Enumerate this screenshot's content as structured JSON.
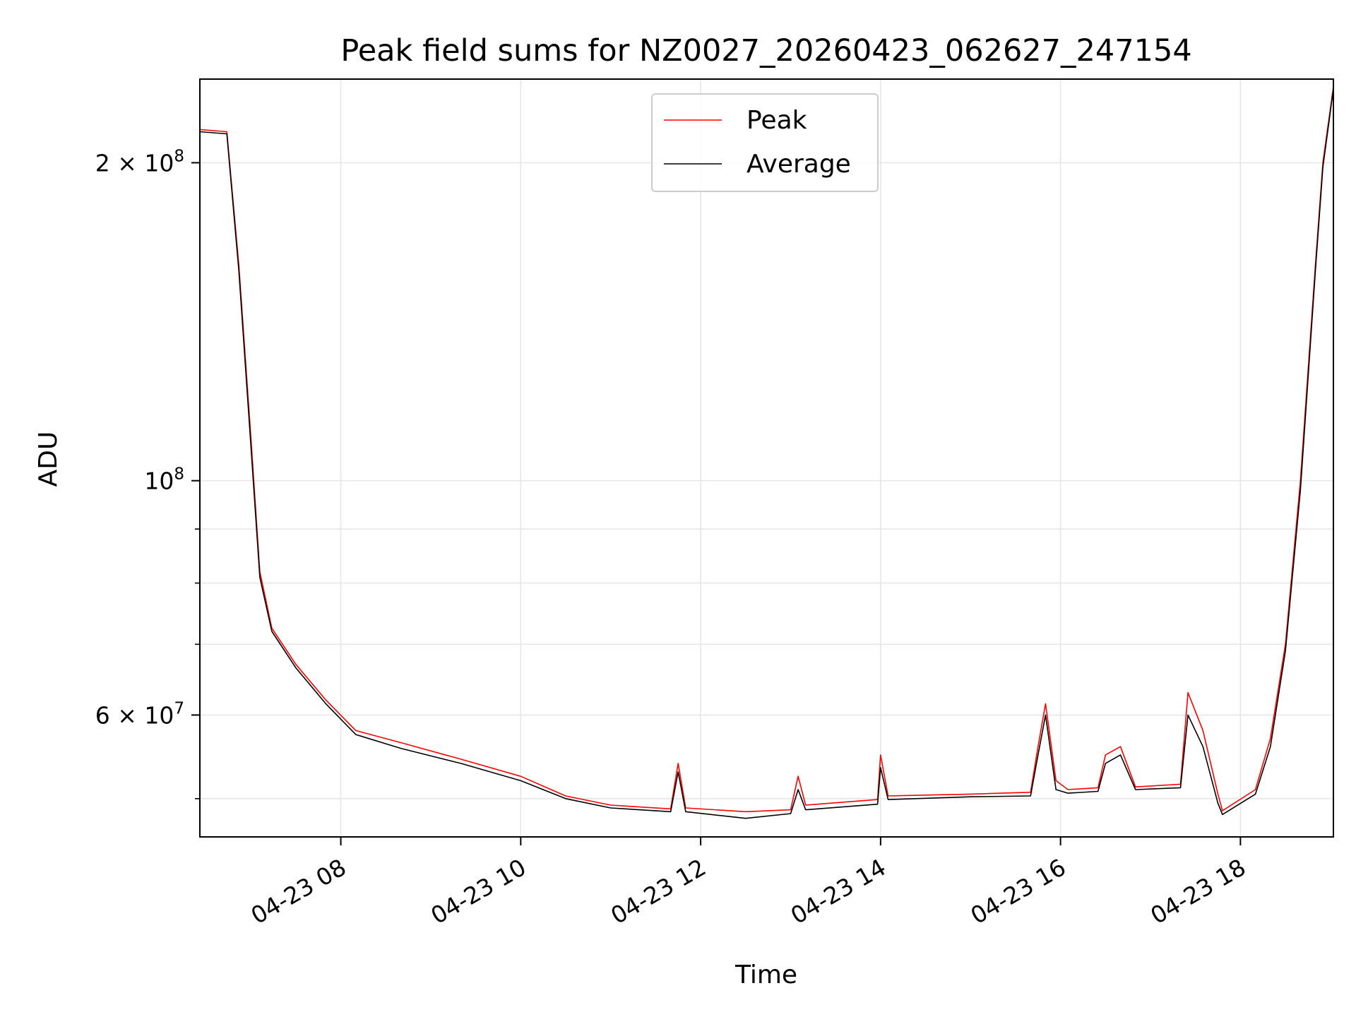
{
  "chart_data": {
    "type": "line",
    "title": "Peak field sums for NZ0027_20260423_062627_247154",
    "xlabel": "Time",
    "ylabel": "ADU",
    "yscale": "log",
    "xlim": [
      "04-23 06:26",
      "04-23 19:02"
    ],
    "ylim": [
      46000000,
      240000000
    ],
    "grid": true,
    "legend_position": "upper center",
    "x_tick_labels": [
      "04-23 08",
      "04-23 10",
      "04-23 12",
      "04-23 14",
      "04-23 16",
      "04-23 18"
    ],
    "x_ticks": [
      "04-23 08:00",
      "04-23 10:00",
      "04-23 12:00",
      "04-23 14:00",
      "04-23 16:00",
      "04-23 18:00"
    ],
    "y_tick_labels": [
      {
        "value": 200000000,
        "mantissa": "2",
        "exp": "8"
      },
      {
        "value": 100000000,
        "mantissa": "",
        "exp": "8"
      },
      {
        "value": 60000000,
        "mantissa": "6",
        "exp": "7"
      }
    ],
    "y_minor_ticks": [
      50000000,
      70000000,
      80000000,
      90000000
    ],
    "series": [
      {
        "name": "Peak",
        "color": "#ff0000",
        "points": [
          [
            "04-23 06:26",
            215000000
          ],
          [
            "04-23 06:44",
            214000000
          ],
          [
            "04-23 06:52",
            160000000
          ],
          [
            "04-23 07:00",
            110000000
          ],
          [
            "04-23 07:06",
            82000000
          ],
          [
            "04-23 07:14",
            72500000
          ],
          [
            "04-23 07:30",
            67000000
          ],
          [
            "04-23 07:50",
            62000000
          ],
          [
            "04-23 08:10",
            58000000
          ],
          [
            "04-23 08:40",
            56500000
          ],
          [
            "04-23 09:20",
            54500000
          ],
          [
            "04-23 10:00",
            52500000
          ],
          [
            "04-23 10:30",
            50300000
          ],
          [
            "04-23 11:00",
            49300000
          ],
          [
            "04-23 11:40",
            48900000
          ],
          [
            "04-23 11:45",
            54000000
          ],
          [
            "04-23 11:50",
            49000000
          ],
          [
            "04-23 12:30",
            48600000
          ],
          [
            "04-23 13:00",
            48800000
          ],
          [
            "04-23 13:05",
            52500000
          ],
          [
            "04-23 13:10",
            49300000
          ],
          [
            "04-23 13:58",
            49900000
          ],
          [
            "04-23 14:00",
            55000000
          ],
          [
            "04-23 14:05",
            50300000
          ],
          [
            "04-23 15:00",
            50500000
          ],
          [
            "04-23 15:40",
            50700000
          ],
          [
            "04-23 15:45",
            56000000
          ],
          [
            "04-23 15:50",
            61500000
          ],
          [
            "04-23 15:57",
            52000000
          ],
          [
            "04-23 16:05",
            51000000
          ],
          [
            "04-23 16:25",
            51200000
          ],
          [
            "04-23 16:30",
            55000000
          ],
          [
            "04-23 16:40",
            56000000
          ],
          [
            "04-23 16:50",
            51300000
          ],
          [
            "04-23 17:20",
            51600000
          ],
          [
            "04-23 17:25",
            63000000
          ],
          [
            "04-23 17:35",
            58000000
          ],
          [
            "04-23 17:45",
            50500000
          ],
          [
            "04-23 17:48",
            48700000
          ],
          [
            "04-23 18:10",
            51000000
          ],
          [
            "04-23 18:20",
            57000000
          ],
          [
            "04-23 18:30",
            70000000
          ],
          [
            "04-23 18:40",
            100000000
          ],
          [
            "04-23 18:50",
            160000000
          ],
          [
            "04-23 18:55",
            200000000
          ],
          [
            "04-23 19:02",
            236000000
          ]
        ]
      },
      {
        "name": "Average",
        "color": "#000000",
        "points": [
          [
            "04-23 06:26",
            214000000
          ],
          [
            "04-23 06:44",
            213000000
          ],
          [
            "04-23 06:52",
            158000000
          ],
          [
            "04-23 07:00",
            108000000
          ],
          [
            "04-23 07:06",
            81000000
          ],
          [
            "04-23 07:14",
            72000000
          ],
          [
            "04-23 07:30",
            66500000
          ],
          [
            "04-23 07:50",
            61500000
          ],
          [
            "04-23 08:10",
            57500000
          ],
          [
            "04-23 08:40",
            55800000
          ],
          [
            "04-23 09:20",
            54000000
          ],
          [
            "04-23 10:00",
            52000000
          ],
          [
            "04-23 10:30",
            50000000
          ],
          [
            "04-23 11:00",
            49000000
          ],
          [
            "04-23 11:40",
            48600000
          ],
          [
            "04-23 11:45",
            53000000
          ],
          [
            "04-23 11:50",
            48600000
          ],
          [
            "04-23 12:30",
            47900000
          ],
          [
            "04-23 13:00",
            48400000
          ],
          [
            "04-23 13:05",
            51000000
          ],
          [
            "04-23 13:10",
            48800000
          ],
          [
            "04-23 13:58",
            49400000
          ],
          [
            "04-23 14:00",
            53500000
          ],
          [
            "04-23 14:05",
            49900000
          ],
          [
            "04-23 15:00",
            50200000
          ],
          [
            "04-23 15:40",
            50300000
          ],
          [
            "04-23 15:45",
            55000000
          ],
          [
            "04-23 15:50",
            60000000
          ],
          [
            "04-23 15:57",
            51000000
          ],
          [
            "04-23 16:05",
            50600000
          ],
          [
            "04-23 16:25",
            50800000
          ],
          [
            "04-23 16:30",
            54000000
          ],
          [
            "04-23 16:40",
            55000000
          ],
          [
            "04-23 16:50",
            51000000
          ],
          [
            "04-23 17:20",
            51200000
          ],
          [
            "04-23 17:25",
            60000000
          ],
          [
            "04-23 17:35",
            56000000
          ],
          [
            "04-23 17:45",
            49500000
          ],
          [
            "04-23 17:48",
            48300000
          ],
          [
            "04-23 18:10",
            50500000
          ],
          [
            "04-23 18:20",
            56000000
          ],
          [
            "04-23 18:30",
            69000000
          ],
          [
            "04-23 18:40",
            98000000
          ],
          [
            "04-23 18:50",
            158000000
          ],
          [
            "04-23 18:55",
            198000000
          ],
          [
            "04-23 19:02",
            235000000
          ]
        ]
      }
    ]
  }
}
